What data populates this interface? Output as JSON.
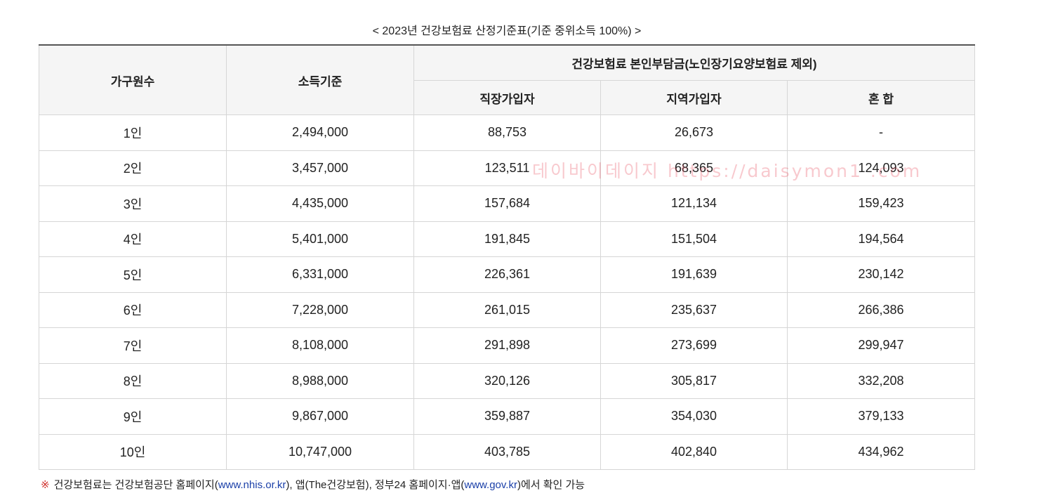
{
  "title": "< 2023년 건강보험료 산정기준표(기준 중위소득 100%) >",
  "headers": {
    "household": "가구원수",
    "income": "소득기준",
    "premium_group": "건강보험료 본인부담금(노인장기요양보험료 제외)",
    "employee": "직장가입자",
    "regional": "지역가입자",
    "mixed": "혼 합"
  },
  "rows": [
    [
      "1인",
      "2,494,000",
      "88,753",
      "26,673",
      "-"
    ],
    [
      "2인",
      "3,457,000",
      "123,511",
      "68,365",
      "124,093"
    ],
    [
      "3인",
      "4,435,000",
      "157,684",
      "121,134",
      "159,423"
    ],
    [
      "4인",
      "5,401,000",
      "191,845",
      "151,504",
      "194,564"
    ],
    [
      "5인",
      "6,331,000",
      "226,361",
      "191,639",
      "230,142"
    ],
    [
      "6인",
      "7,228,000",
      "261,015",
      "235,637",
      "266,386"
    ],
    [
      "7인",
      "8,108,000",
      "291,898",
      "273,699",
      "299,947"
    ],
    [
      "8인",
      "8,988,000",
      "320,126",
      "305,817",
      "332,208"
    ],
    [
      "9인",
      "9,867,000",
      "359,887",
      "354,030",
      "379,133"
    ],
    [
      "10인",
      "10,747,000",
      "403,785",
      "402,840",
      "434,962"
    ]
  ],
  "watermark": "데이바이데이지 https://daisymon1 .com",
  "footnote": {
    "mark": "※",
    "text1": "건강보험료는 건강보험공단 홈페이지(",
    "link1": "www.nhis.or.kr",
    "text2": "), 앱(The건강보험), 정부24 홈페이지·앱(",
    "link2": "www.gov.kr",
    "text3": ")에서 확인 가능"
  }
}
